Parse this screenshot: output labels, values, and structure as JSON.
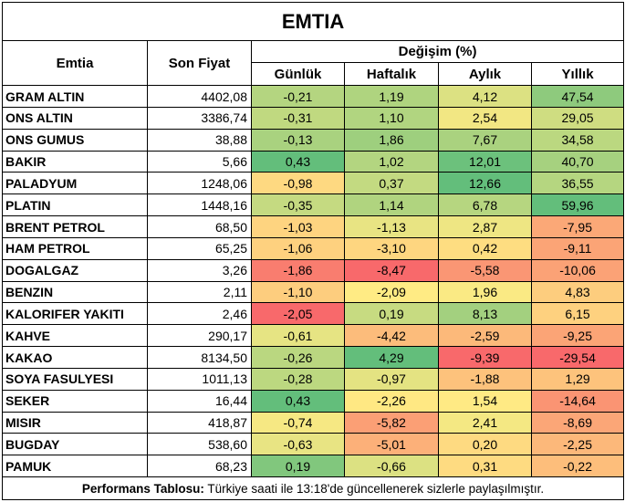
{
  "title": "EMTIA",
  "headers": {
    "name": "Emtia",
    "price": "Son Fiyat",
    "change_group": "Değişim (%)",
    "daily": "Günlük",
    "weekly": "Haftalık",
    "monthly": "Aylık",
    "yearly": "Yıllık"
  },
  "rows": [
    {
      "name": "GRAM ALTIN",
      "price": "4402,08",
      "daily": "-0,21",
      "weekly": "1,19",
      "monthly": "4,12",
      "yearly": "47,54"
    },
    {
      "name": "ONS ALTIN",
      "price": "3386,74",
      "daily": "-0,31",
      "weekly": "1,10",
      "monthly": "2,54",
      "yearly": "29,05"
    },
    {
      "name": "ONS GUMUS",
      "price": "38,88",
      "daily": "-0,13",
      "weekly": "1,86",
      "monthly": "7,67",
      "yearly": "34,58"
    },
    {
      "name": "BAKIR",
      "price": "5,66",
      "daily": "0,43",
      "weekly": "1,02",
      "monthly": "12,01",
      "yearly": "40,70"
    },
    {
      "name": "PALADYUM",
      "price": "1248,06",
      "daily": "-0,98",
      "weekly": "0,37",
      "monthly": "12,66",
      "yearly": "36,55"
    },
    {
      "name": "PLATIN",
      "price": "1448,16",
      "daily": "-0,35",
      "weekly": "1,14",
      "monthly": "6,78",
      "yearly": "59,96"
    },
    {
      "name": "BRENT PETROL",
      "price": "68,50",
      "daily": "-1,03",
      "weekly": "-1,13",
      "monthly": "2,87",
      "yearly": "-7,95"
    },
    {
      "name": "HAM PETROL",
      "price": "65,25",
      "daily": "-1,06",
      "weekly": "-3,10",
      "monthly": "0,42",
      "yearly": "-9,11"
    },
    {
      "name": "DOGALGAZ",
      "price": "3,26",
      "daily": "-1,86",
      "weekly": "-8,47",
      "monthly": "-5,58",
      "yearly": "-10,06"
    },
    {
      "name": "BENZIN",
      "price": "2,11",
      "daily": "-1,10",
      "weekly": "-2,09",
      "monthly": "1,96",
      "yearly": "4,83"
    },
    {
      "name": "KALORIFER YAKITI",
      "price": "2,46",
      "daily": "-2,05",
      "weekly": "0,19",
      "monthly": "8,13",
      "yearly": "6,15"
    },
    {
      "name": "KAHVE",
      "price": "290,17",
      "daily": "-0,61",
      "weekly": "-4,42",
      "monthly": "-2,59",
      "yearly": "-9,25"
    },
    {
      "name": "KAKAO",
      "price": "8134,50",
      "daily": "-0,26",
      "weekly": "4,29",
      "monthly": "-9,39",
      "yearly": "-29,54"
    },
    {
      "name": "SOYA FASULYESI",
      "price": "1011,13",
      "daily": "-0,28",
      "weekly": "-0,97",
      "monthly": "-1,88",
      "yearly": "1,29"
    },
    {
      "name": "SEKER",
      "price": "16,44",
      "daily": "0,43",
      "weekly": "-2,26",
      "monthly": "1,54",
      "yearly": "-14,64"
    },
    {
      "name": "MISIR",
      "price": "418,87",
      "daily": "-0,74",
      "weekly": "-5,82",
      "monthly": "2,41",
      "yearly": "-8,69"
    },
    {
      "name": "BUGDAY",
      "price": "538,60",
      "daily": "-0,63",
      "weekly": "-5,01",
      "monthly": "0,20",
      "yearly": "-2,25"
    },
    {
      "name": "PAMUK",
      "price": "68,23",
      "daily": "0,19",
      "weekly": "-0,66",
      "monthly": "0,31",
      "yearly": "-0,22"
    }
  ],
  "colors": {
    "red": "#F8696B",
    "yellow": "#FFEB84",
    "green": "#63BE7B"
  },
  "footer": {
    "bold": "Performans Tablosu:",
    "text": " Türkiye saati ile 13:18'de güncellenerek sizlerle paylaşılmıştır."
  }
}
